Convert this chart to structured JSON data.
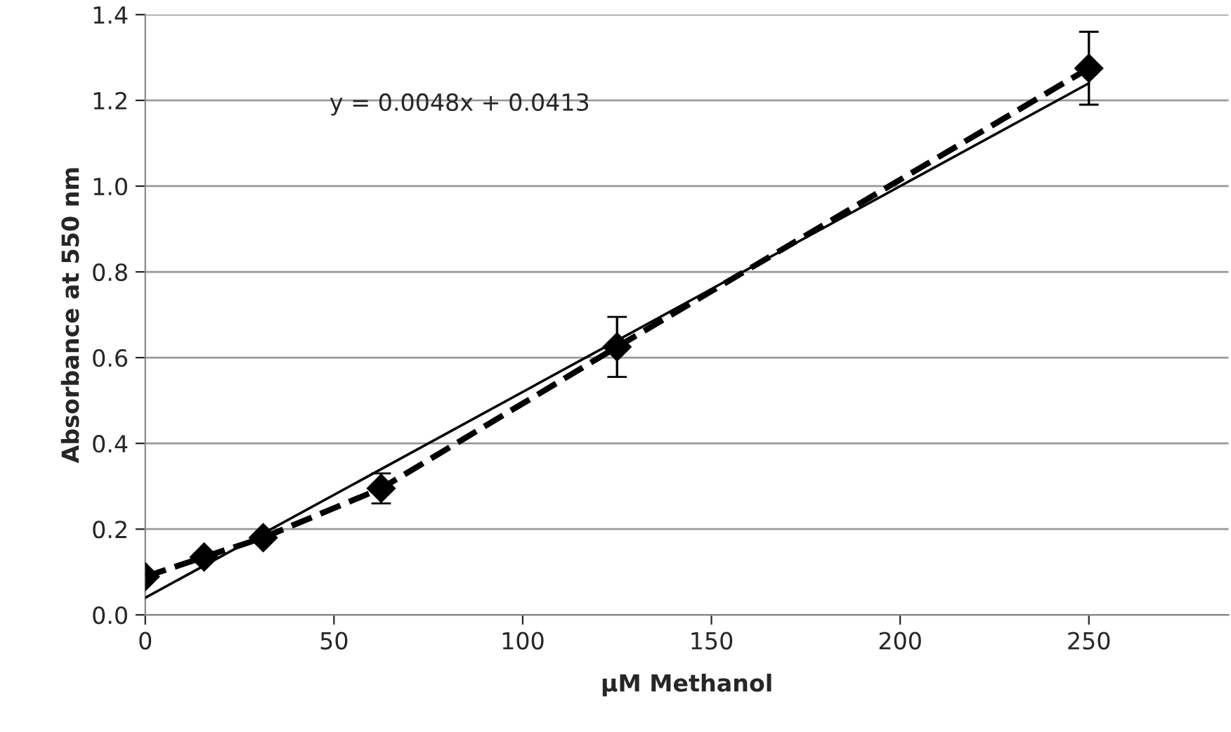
{
  "chart_data": {
    "type": "line",
    "xlabel": "µM Methanol",
    "ylabel": "Absorbance at 550 nm",
    "xlim": [
      0,
      287
    ],
    "xticks": [
      0,
      50,
      100,
      150,
      200,
      250
    ],
    "ylim": [
      0,
      1.4
    ],
    "yticks": [
      {
        "value": 0,
        "label": "0.0"
      },
      {
        "value": 0.2,
        "label": "0.2"
      },
      {
        "value": 0.4,
        "label": "0.4"
      },
      {
        "value": 0.6,
        "label": "0.6"
      },
      {
        "value": 0.8,
        "label": "0.8"
      },
      {
        "value": 1.0,
        "label": "1.0"
      },
      {
        "value": 1.2,
        "label": "1.2"
      },
      {
        "value": 1.4,
        "label": "1.4"
      }
    ],
    "grid": "y",
    "series": [
      {
        "color": "#000000",
        "marker": "diamond",
        "line_style": "dashed",
        "x": [
          0,
          15.6,
          31.25,
          62.5,
          125,
          250
        ],
        "values": [
          0.089,
          0.135,
          0.18,
          0.295,
          0.625,
          1.275
        ],
        "errors": [
          null,
          null,
          null,
          0.035,
          0.07,
          0.085
        ]
      },
      {
        "color": "#000000",
        "marker": "none",
        "line_style": "solid",
        "x": [
          0,
          250
        ],
        "values": [
          0.04,
          1.24
        ]
      }
    ],
    "annotations": [
      "y = 0.0048x + 0.0413"
    ]
  }
}
